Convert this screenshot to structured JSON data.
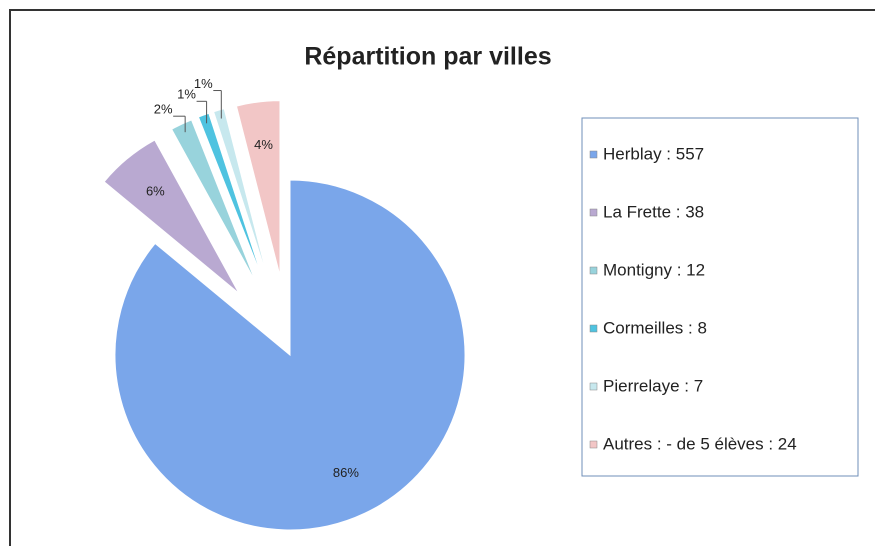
{
  "chart_data": {
    "type": "pie",
    "title": "Répartition par villes",
    "categories": [
      "Herblay : 557",
      "La Frette : 38",
      "Montigny : 12",
      "Cormeilles : 8",
      "Pierrelaye : 7",
      "Autres : - de 5 élèves : 24"
    ],
    "values": [
      86,
      6,
      2,
      1,
      1,
      4
    ],
    "value_labels": [
      "86%",
      "6%",
      "2%",
      "1%",
      "1%",
      "4%"
    ],
    "colors": [
      "#7aa6ea",
      "#b9a9d1",
      "#98d3dc",
      "#4fc3e0",
      "#c7e8ee",
      "#f2c6c6"
    ],
    "legend": "right"
  }
}
